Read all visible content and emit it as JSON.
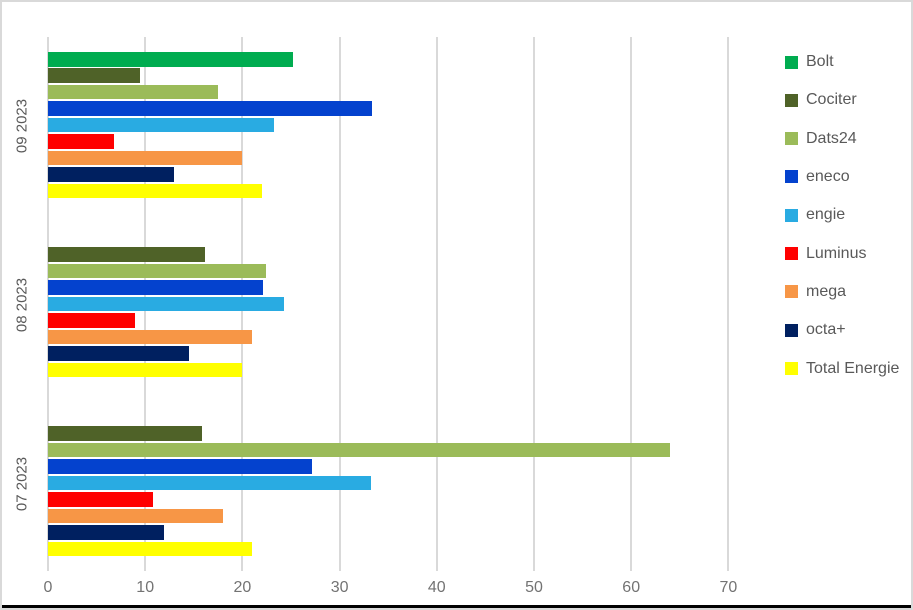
{
  "window": {
    "background": "#FFFFFF",
    "border_color": "#D9D9D9",
    "bottom_edge_color": "#000000"
  },
  "chart_data": {
    "type": "bar",
    "orientation": "horizontal",
    "title": "",
    "xlabel": "",
    "ylabel": "",
    "categories": [
      "09 2023",
      "08 2023",
      "07 2023"
    ],
    "series": [
      {
        "name": "Bolt",
        "color": "#00AC50",
        "values": [
          25.2,
          0,
          0
        ]
      },
      {
        "name": "Cociter",
        "color": "#4F6228",
        "values": [
          9.5,
          16.2,
          15.8
        ]
      },
      {
        "name": "Dats24",
        "color": "#9BBB59",
        "values": [
          17.5,
          22.4,
          64
        ]
      },
      {
        "name": "eneco",
        "color": "#0442CE",
        "values": [
          33.3,
          22.1,
          27.2
        ]
      },
      {
        "name": "engie",
        "color": "#29ABE2",
        "values": [
          23.2,
          24.3,
          33.2
        ]
      },
      {
        "name": "Luminus",
        "color": "#FF0000",
        "values": [
          6.8,
          8.9,
          10.8
        ]
      },
      {
        "name": "mega",
        "color": "#F79646",
        "values": [
          20,
          21,
          18
        ]
      },
      {
        "name": "octa+",
        "color": "#002060",
        "values": [
          13,
          14.5,
          11.9
        ]
      },
      {
        "name": "Total Energie",
        "color": "#FFFF00",
        "values": [
          22,
          20,
          21
        ]
      }
    ],
    "x_axis": {
      "min": 0,
      "max": 72.5,
      "tick_values": [
        0,
        10,
        20,
        30,
        40,
        50,
        60,
        70
      ],
      "tick_labels": [
        "0",
        "10",
        "20",
        "30",
        "40",
        "50",
        "60",
        "70"
      ],
      "gridlines": true,
      "gridline_color": "#D9D9D9"
    },
    "legend": {
      "position": "right",
      "entries": [
        "Bolt",
        "Cociter",
        "Dats24",
        "eneco",
        "engie",
        "Luminus",
        "mega",
        "octa+",
        "Total Energie"
      ]
    },
    "text_color": "#595959"
  }
}
